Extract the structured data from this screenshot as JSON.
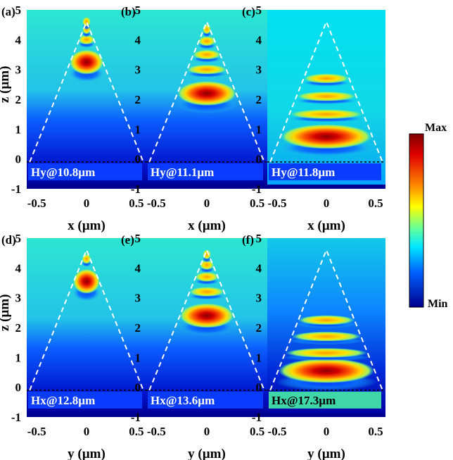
{
  "panels": [
    {
      "id": "a",
      "tag": "(a)",
      "label": "Hy@10.8µm",
      "axis_var": "x",
      "peaks": [
        3.25,
        4.0,
        4.35,
        4.6
      ],
      "label_bg": "#0a3cff"
    },
    {
      "id": "b",
      "tag": "(b)",
      "label": "Hy@11.1µm",
      "axis_var": "x",
      "peaks": [
        2.2,
        3.0,
        3.5,
        3.95,
        4.35
      ],
      "label_bg": "#0a3cff"
    },
    {
      "id": "c",
      "tag": "(c)",
      "label": "Hy@11.8µm",
      "axis_var": "x",
      "peaks": [
        0.75,
        1.5,
        2.1,
        2.7
      ],
      "label_bg": "#0a3cff"
    },
    {
      "id": "d",
      "tag": "(d)",
      "label": "Hx@12.8µm",
      "axis_var": "y",
      "peaks": [
        3.55,
        4.3
      ],
      "label_bg": "#0a3cff"
    },
    {
      "id": "e",
      "tag": "(e)",
      "label": "Hx@13.6µm",
      "axis_var": "y",
      "peaks": [
        2.4,
        3.2,
        3.7,
        4.1,
        4.45
      ],
      "label_bg": "#0a3cff"
    },
    {
      "id": "f",
      "tag": "(f)",
      "label": "Hx@17.3µm",
      "axis_var": "y",
      "peaks": [
        0.55,
        1.15,
        1.7,
        2.25
      ],
      "label_bg": "#3fd6a8"
    }
  ],
  "axes": {
    "z_label": "z (µm)",
    "x_label": "x (µm)",
    "y_label": "y (µm)",
    "z_ticks": [
      "5",
      "4",
      "3",
      "2",
      "1",
      "0",
      "-1"
    ],
    "h_ticks": [
      "-0.5",
      "0",
      "0.5"
    ]
  },
  "colorbar": {
    "max_label": "Max",
    "min_label": "Min"
  },
  "colors": {
    "dashed_outline": "#ffffff",
    "substrate_line": "#000000"
  }
}
